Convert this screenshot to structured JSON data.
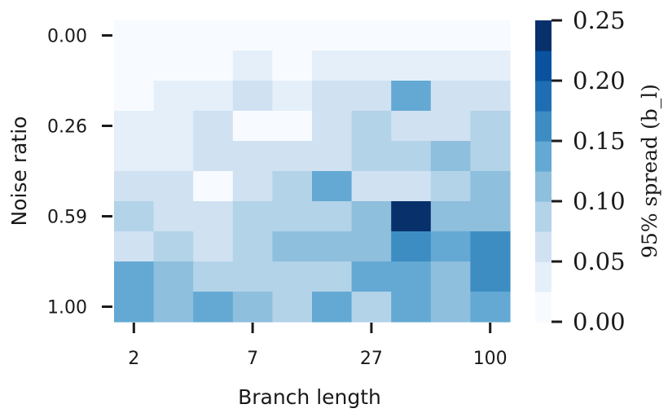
{
  "chart_data": {
    "type": "heatmap",
    "xlabel": "Branch length",
    "ylabel": "Noise ratio",
    "x_tick_labels": [
      "2",
      "7",
      "27",
      "100"
    ],
    "x_tick_columns": [
      0,
      3,
      6,
      9
    ],
    "y_tick_labels": [
      "0.00",
      "0.26",
      "0.59",
      "1.00"
    ],
    "y_tick_rows": [
      0,
      3,
      6,
      9
    ],
    "n_cols": 10,
    "n_rows": 10,
    "values": [
      [
        0.0,
        0.0,
        0.0,
        0.0,
        0.0,
        0.0,
        0.0,
        0.0,
        0.0,
        0.0
      ],
      [
        0.0,
        0.0,
        0.0,
        0.03,
        0.0,
        0.03,
        0.03,
        0.03,
        0.03,
        0.03
      ],
      [
        0.0,
        0.03,
        0.03,
        0.06,
        0.03,
        0.06,
        0.06,
        0.14,
        0.06,
        0.06
      ],
      [
        0.03,
        0.03,
        0.06,
        0.02,
        0.02,
        0.06,
        0.09,
        0.06,
        0.06,
        0.09
      ],
      [
        0.03,
        0.03,
        0.06,
        0.06,
        0.06,
        0.06,
        0.09,
        0.09,
        0.11,
        0.09
      ],
      [
        0.06,
        0.06,
        0.02,
        0.06,
        0.09,
        0.14,
        0.06,
        0.06,
        0.09,
        0.11
      ],
      [
        0.09,
        0.06,
        0.06,
        0.09,
        0.09,
        0.09,
        0.11,
        0.25,
        0.11,
        0.11
      ],
      [
        0.06,
        0.09,
        0.06,
        0.09,
        0.11,
        0.11,
        0.11,
        0.16,
        0.14,
        0.16
      ],
      [
        0.14,
        0.11,
        0.09,
        0.09,
        0.09,
        0.09,
        0.14,
        0.14,
        0.11,
        0.16
      ],
      [
        0.14,
        0.11,
        0.14,
        0.11,
        0.09,
        0.14,
        0.09,
        0.14,
        0.11,
        0.14
      ]
    ],
    "colorbar": {
      "label": "95% spread (b_l)",
      "min": 0.0,
      "max": 0.25,
      "tick_values": [
        0.0,
        0.05,
        0.1,
        0.15,
        0.2,
        0.25
      ],
      "tick_labels": [
        "0.00",
        "0.05",
        "0.10",
        "0.15",
        "0.20",
        "0.25"
      ],
      "colors": [
        "#f7fbff",
        "#e4eff9",
        "#d0e1f2",
        "#b3d3e8",
        "#8ebfdd",
        "#64a9d3",
        "#3d8dc3",
        "#1f6eb3",
        "#0a529d",
        "#08306b"
      ]
    }
  }
}
